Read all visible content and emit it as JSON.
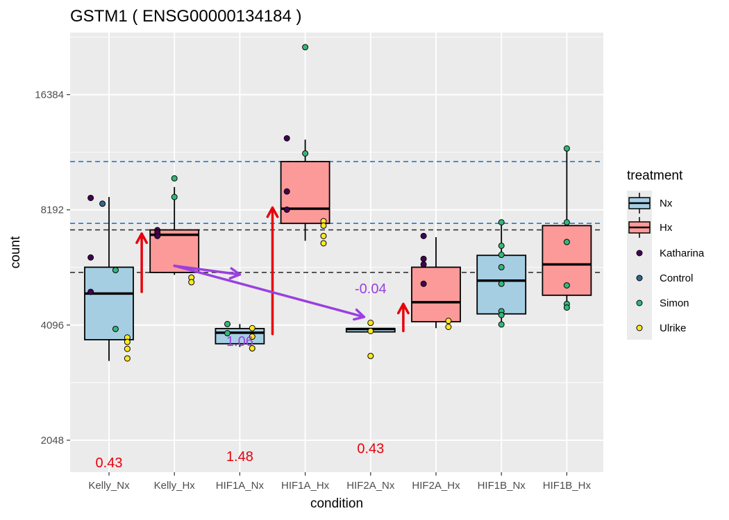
{
  "chart_data": {
    "type": "box",
    "title": "GSTM1 ( ENSG00000134184 )",
    "xlabel": "condition",
    "ylabel": "count",
    "y_scale": "log2",
    "ylim": [
      1690,
      23800
    ],
    "y_ticks": [
      2048,
      4096,
      8192,
      16384
    ],
    "y_tick_labels": [
      "2048",
      "4096",
      "8192",
      "16384"
    ],
    "categories": [
      "Kelly_Nx",
      "Kelly_Hx",
      "HIF1A_Nx",
      "HIF1A_Hx",
      "HIF2A_Nx",
      "HIF2A_Hx",
      "HIF1B_Nx",
      "HIF1B_Hx"
    ],
    "fill_legend": {
      "title": "treatment",
      "entries": [
        {
          "name": "Nx",
          "color": "#a6cee3"
        },
        {
          "name": "Hx",
          "color": "#fb9a99"
        }
      ]
    },
    "point_legend": [
      {
        "name": "Katharina",
        "color": "#440154"
      },
      {
        "name": "Control",
        "color": "#31688e"
      },
      {
        "name": "Simon",
        "color": "#35b779"
      },
      {
        "name": "Ulrike",
        "color": "#fde725"
      }
    ],
    "boxes": [
      {
        "category": "Kelly_Nx",
        "treatment": "Nx",
        "lower_whisker": 3300,
        "q1": 3750,
        "median": 4950,
        "q3": 5800,
        "upper_whisker": 8850
      },
      {
        "category": "Kelly_Hx",
        "treatment": "Hx",
        "lower_whisker": 5540,
        "q1": 5620,
        "median": 7050,
        "q3": 7260,
        "upper_whisker": 9400
      },
      {
        "category": "HIF1A_Nx",
        "treatment": "Nx",
        "lower_whisker": 3590,
        "q1": 3660,
        "median": 3910,
        "q3": 4010,
        "upper_whisker": 4120
      },
      {
        "category": "HIF1A_Hx",
        "treatment": "Hx",
        "lower_whisker": 6800,
        "q1": 7550,
        "median": 8250,
        "q3": 10950,
        "upper_whisker": 12500
      },
      {
        "category": "HIF2A_Nx",
        "treatment": "Nx",
        "lower_whisker": 3930,
        "q1": 3930,
        "median": 4000,
        "q3": 4010,
        "upper_whisker": 4010
      },
      {
        "category": "HIF2A_Hx",
        "treatment": "Hx",
        "lower_whisker": 4020,
        "q1": 4180,
        "median": 4700,
        "q3": 5800,
        "upper_whisker": 6950
      },
      {
        "category": "HIF1B_Nx",
        "treatment": "Nx",
        "lower_whisker": 4110,
        "q1": 4380,
        "median": 5350,
        "q3": 6230,
        "upper_whisker": 7600
      },
      {
        "category": "HIF1B_Hx",
        "treatment": "Hx",
        "lower_whisker": 4550,
        "q1": 4900,
        "median": 5900,
        "q3": 7450,
        "upper_whisker": 11800
      }
    ],
    "points": [
      {
        "category": "Kelly_Nx",
        "dx": -0.28,
        "y": 8800,
        "group": "Katharina"
      },
      {
        "category": "Kelly_Nx",
        "dx": -0.28,
        "y": 6150,
        "group": "Katharina"
      },
      {
        "category": "Kelly_Nx",
        "dx": -0.28,
        "y": 5000,
        "group": "Katharina"
      },
      {
        "category": "Kelly_Nx",
        "dx": -0.1,
        "y": 8500,
        "group": "Control"
      },
      {
        "category": "Kelly_Nx",
        "dx": 0.1,
        "y": 5700,
        "group": "Simon"
      },
      {
        "category": "Kelly_Nx",
        "dx": 0.1,
        "y": 4000,
        "group": "Simon"
      },
      {
        "category": "Kelly_Nx",
        "dx": 0.28,
        "y": 3800,
        "group": "Ulrike"
      },
      {
        "category": "Kelly_Nx",
        "dx": 0.28,
        "y": 3700,
        "group": "Ulrike"
      },
      {
        "category": "Kelly_Nx",
        "dx": 0.28,
        "y": 3550,
        "group": "Ulrike"
      },
      {
        "category": "Kelly_Nx",
        "dx": 0.28,
        "y": 3350,
        "group": "Ulrike"
      },
      {
        "category": "Kelly_Hx",
        "dx": -0.26,
        "y": 7250,
        "group": "Katharina"
      },
      {
        "category": "Kelly_Hx",
        "dx": -0.26,
        "y": 7150,
        "group": "Katharina"
      },
      {
        "category": "Kelly_Hx",
        "dx": -0.26,
        "y": 7000,
        "group": "Katharina"
      },
      {
        "category": "Kelly_Hx",
        "dx": 0.0,
        "y": 9900,
        "group": "Simon"
      },
      {
        "category": "Kelly_Hx",
        "dx": 0.0,
        "y": 8850,
        "group": "Simon"
      },
      {
        "category": "Kelly_Hx",
        "dx": 0.26,
        "y": 5450,
        "group": "Ulrike"
      },
      {
        "category": "Kelly_Hx",
        "dx": 0.26,
        "y": 5300,
        "group": "Ulrike"
      },
      {
        "category": "HIF1A_Nx",
        "dx": -0.19,
        "y": 4120,
        "group": "Simon"
      },
      {
        "category": "HIF1A_Nx",
        "dx": -0.19,
        "y": 3900,
        "group": "Simon"
      },
      {
        "category": "HIF1A_Nx",
        "dx": 0.19,
        "y": 4020,
        "group": "Ulrike"
      },
      {
        "category": "HIF1A_Nx",
        "dx": 0.19,
        "y": 3820,
        "group": "Ulrike"
      },
      {
        "category": "HIF1A_Nx",
        "dx": 0.19,
        "y": 3560,
        "group": "Ulrike"
      },
      {
        "category": "HIF1A_Hx",
        "dx": -0.28,
        "y": 12600,
        "group": "Katharina"
      },
      {
        "category": "HIF1A_Hx",
        "dx": -0.28,
        "y": 9150,
        "group": "Katharina"
      },
      {
        "category": "HIF1A_Hx",
        "dx": -0.28,
        "y": 8200,
        "group": "Katharina"
      },
      {
        "category": "HIF1A_Hx",
        "dx": 0.0,
        "y": 21800,
        "group": "Simon"
      },
      {
        "category": "HIF1A_Hx",
        "dx": 0.0,
        "y": 11500,
        "group": "Simon"
      },
      {
        "category": "HIF1A_Hx",
        "dx": 0.28,
        "y": 7650,
        "group": "Ulrike"
      },
      {
        "category": "HIF1A_Hx",
        "dx": 0.28,
        "y": 7450,
        "group": "Ulrike"
      },
      {
        "category": "HIF1A_Hx",
        "dx": 0.28,
        "y": 7000,
        "group": "Ulrike"
      },
      {
        "category": "HIF1A_Hx",
        "dx": 0.28,
        "y": 6700,
        "group": "Ulrike"
      },
      {
        "category": "HIF2A_Nx",
        "dx": 0.0,
        "y": 4150,
        "group": "Ulrike"
      },
      {
        "category": "HIF2A_Nx",
        "dx": 0.0,
        "y": 3950,
        "group": "Ulrike"
      },
      {
        "category": "HIF2A_Nx",
        "dx": 0.0,
        "y": 3400,
        "group": "Ulrike"
      },
      {
        "category": "HIF2A_Hx",
        "dx": -0.19,
        "y": 7000,
        "group": "Katharina"
      },
      {
        "category": "HIF2A_Hx",
        "dx": -0.19,
        "y": 6100,
        "group": "Katharina"
      },
      {
        "category": "HIF2A_Hx",
        "dx": -0.19,
        "y": 5900,
        "group": "Katharina"
      },
      {
        "category": "HIF2A_Hx",
        "dx": -0.19,
        "y": 5250,
        "group": "Katharina"
      },
      {
        "category": "HIF2A_Hx",
        "dx": 0.19,
        "y": 4200,
        "group": "Ulrike"
      },
      {
        "category": "HIF2A_Hx",
        "dx": 0.19,
        "y": 4050,
        "group": "Ulrike"
      },
      {
        "category": "HIF1B_Nx",
        "dx": 0.0,
        "y": 7600,
        "group": "Simon"
      },
      {
        "category": "HIF1B_Nx",
        "dx": 0.0,
        "y": 6600,
        "group": "Simon"
      },
      {
        "category": "HIF1B_Nx",
        "dx": 0.0,
        "y": 6250,
        "group": "Simon"
      },
      {
        "category": "HIF1B_Nx",
        "dx": 0.0,
        "y": 5800,
        "group": "Simon"
      },
      {
        "category": "HIF1B_Nx",
        "dx": 0.0,
        "y": 5250,
        "group": "Simon"
      },
      {
        "category": "HIF1B_Nx",
        "dx": 0.0,
        "y": 4450,
        "group": "Simon"
      },
      {
        "category": "HIF1B_Nx",
        "dx": 0.0,
        "y": 4350,
        "group": "Simon"
      },
      {
        "category": "HIF1B_Nx",
        "dx": 0.0,
        "y": 4110,
        "group": "Simon"
      },
      {
        "category": "HIF1B_Hx",
        "dx": 0.0,
        "y": 11850,
        "group": "Simon"
      },
      {
        "category": "HIF1B_Hx",
        "dx": 0.0,
        "y": 7600,
        "group": "Simon"
      },
      {
        "category": "HIF1B_Hx",
        "dx": 0.0,
        "y": 6750,
        "group": "Simon"
      },
      {
        "category": "HIF1B_Hx",
        "dx": 0.0,
        "y": 5200,
        "group": "Simon"
      },
      {
        "category": "HIF1B_Hx",
        "dx": 0.0,
        "y": 4650,
        "group": "Simon"
      },
      {
        "category": "HIF1B_Hx",
        "dx": 0.0,
        "y": 4550,
        "group": "Simon"
      }
    ],
    "reference_lines": [
      {
        "y": 10950,
        "color": "#1f78d1",
        "style": "dashed"
      },
      {
        "y": 7550,
        "color": "#1f78d1",
        "style": "dashed"
      },
      {
        "y": 7260,
        "color": "#333333",
        "style": "dashed"
      },
      {
        "y": 5620,
        "color": "#333333",
        "style": "dashed"
      }
    ],
    "arrows": [
      {
        "x": 1.5,
        "y_from": 5000,
        "y_to": 7100,
        "color": "#e8000b"
      },
      {
        "x": 3.5,
        "y_from": 3880,
        "y_to": 8300,
        "color": "#e8000b"
      },
      {
        "x": 5.5,
        "y_from": 3950,
        "y_to": 4650,
        "color": "#e8000b"
      },
      {
        "x_from": 2.0,
        "y_from": 5850,
        "x_to": 3.0,
        "y_to": 5550,
        "color": "#9a3fe0"
      },
      {
        "x_from": 2.0,
        "y_from": 5850,
        "x_to": 4.9,
        "y_to": 4300,
        "color": "#9a3fe0"
      }
    ],
    "annotations": [
      {
        "text": "0.43",
        "x": 1.0,
        "y": 1790,
        "color": "#e8000b"
      },
      {
        "text": "1.48",
        "x": 3.0,
        "y": 1860,
        "color": "#e8000b"
      },
      {
        "text": "0.43",
        "x": 5.0,
        "y": 1950,
        "color": "#e8000b"
      },
      {
        "text": "1.06",
        "x": 3.0,
        "y": 3720,
        "color": "#9a3fe0"
      },
      {
        "text": "-0.04",
        "x": 5.0,
        "y": 5100,
        "color": "#9a3fe0"
      }
    ],
    "grid": true,
    "legend_position": "right"
  }
}
